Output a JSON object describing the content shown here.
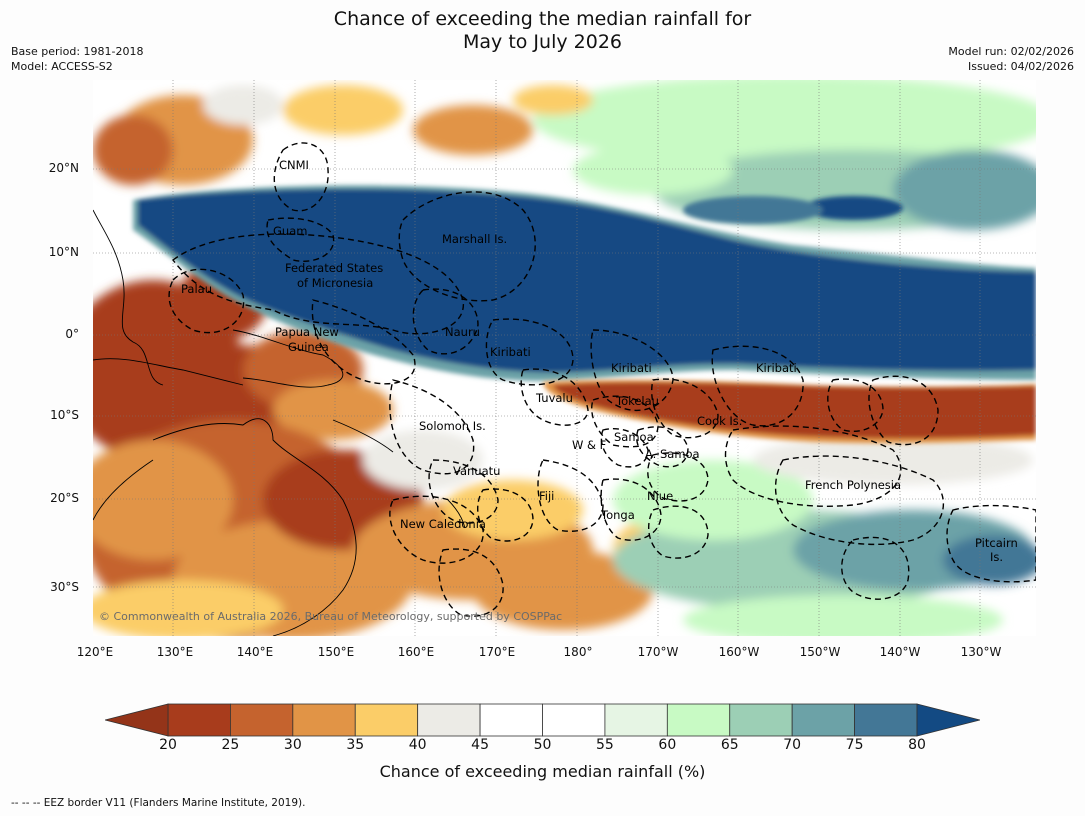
{
  "header": {
    "title_line1": "Chance of exceeding the median rainfall for",
    "title_line2": "May to July 2026",
    "base_period": "Base period: 1981-2018",
    "model": "Model: ACCESS-S2",
    "model_run": "Model run: 02/02/2026",
    "issued": "Issued: 04/02/2026"
  },
  "map": {
    "lat_labels": [
      "20°N",
      "10°N",
      "0°",
      "10°S",
      "20°S",
      "30°S"
    ],
    "lon_labels": [
      "120°E",
      "130°E",
      "140°E",
      "150°E",
      "160°E",
      "170°E",
      "180°",
      "170°W",
      "160°W",
      "150°W",
      "140°W",
      "130°W"
    ],
    "places": [
      {
        "name": "CNMI"
      },
      {
        "name": "Guam"
      },
      {
        "name": "Marshall Is."
      },
      {
        "name": "Federated States"
      },
      {
        "name": "of Micronesia"
      },
      {
        "name": "Palau"
      },
      {
        "name": "Papua New"
      },
      {
        "name": "Guinea"
      },
      {
        "name": "Nauru"
      },
      {
        "name": "Kiribati"
      },
      {
        "name": "Kiribati"
      },
      {
        "name": "Kiribati"
      },
      {
        "name": "Tuvalu"
      },
      {
        "name": "Tokelau"
      },
      {
        "name": "Cook Is."
      },
      {
        "name": "Solomon Is."
      },
      {
        "name": "W & F"
      },
      {
        "name": "Samoa"
      },
      {
        "name": "A. Samoa"
      },
      {
        "name": "Vanuatu"
      },
      {
        "name": "Fiji"
      },
      {
        "name": "Niue"
      },
      {
        "name": "French Polynesia"
      },
      {
        "name": "Tonga"
      },
      {
        "name": "New Caledonia"
      },
      {
        "name": "Pitcairn"
      },
      {
        "name": "Is."
      }
    ],
    "copyright": "© Commonwealth of Australia 2026, Bureau of Meteorology, supported by COSPPac"
  },
  "colorbar": {
    "title": "Chance of exceeding median rainfall (%)",
    "ticks": [
      "20",
      "25",
      "30",
      "35",
      "40",
      "45",
      "50",
      "55",
      "60",
      "65",
      "70",
      "75",
      "80"
    ],
    "colors": [
      "#a83c1c",
      "#c5632e",
      "#e19446",
      "#fbcd68",
      "#ecebe6",
      "#ffffff",
      "#ffffff",
      "#e6f5e4",
      "#c8fac4",
      "#9ccfb5",
      "#6ca2a7",
      "#437796",
      "#134a83"
    ],
    "low_color": "#943419",
    "high_color": "#134a83"
  },
  "footnote": "--  --  -- EEZ border V11 (Flanders Marine Institute, 2019)."
}
